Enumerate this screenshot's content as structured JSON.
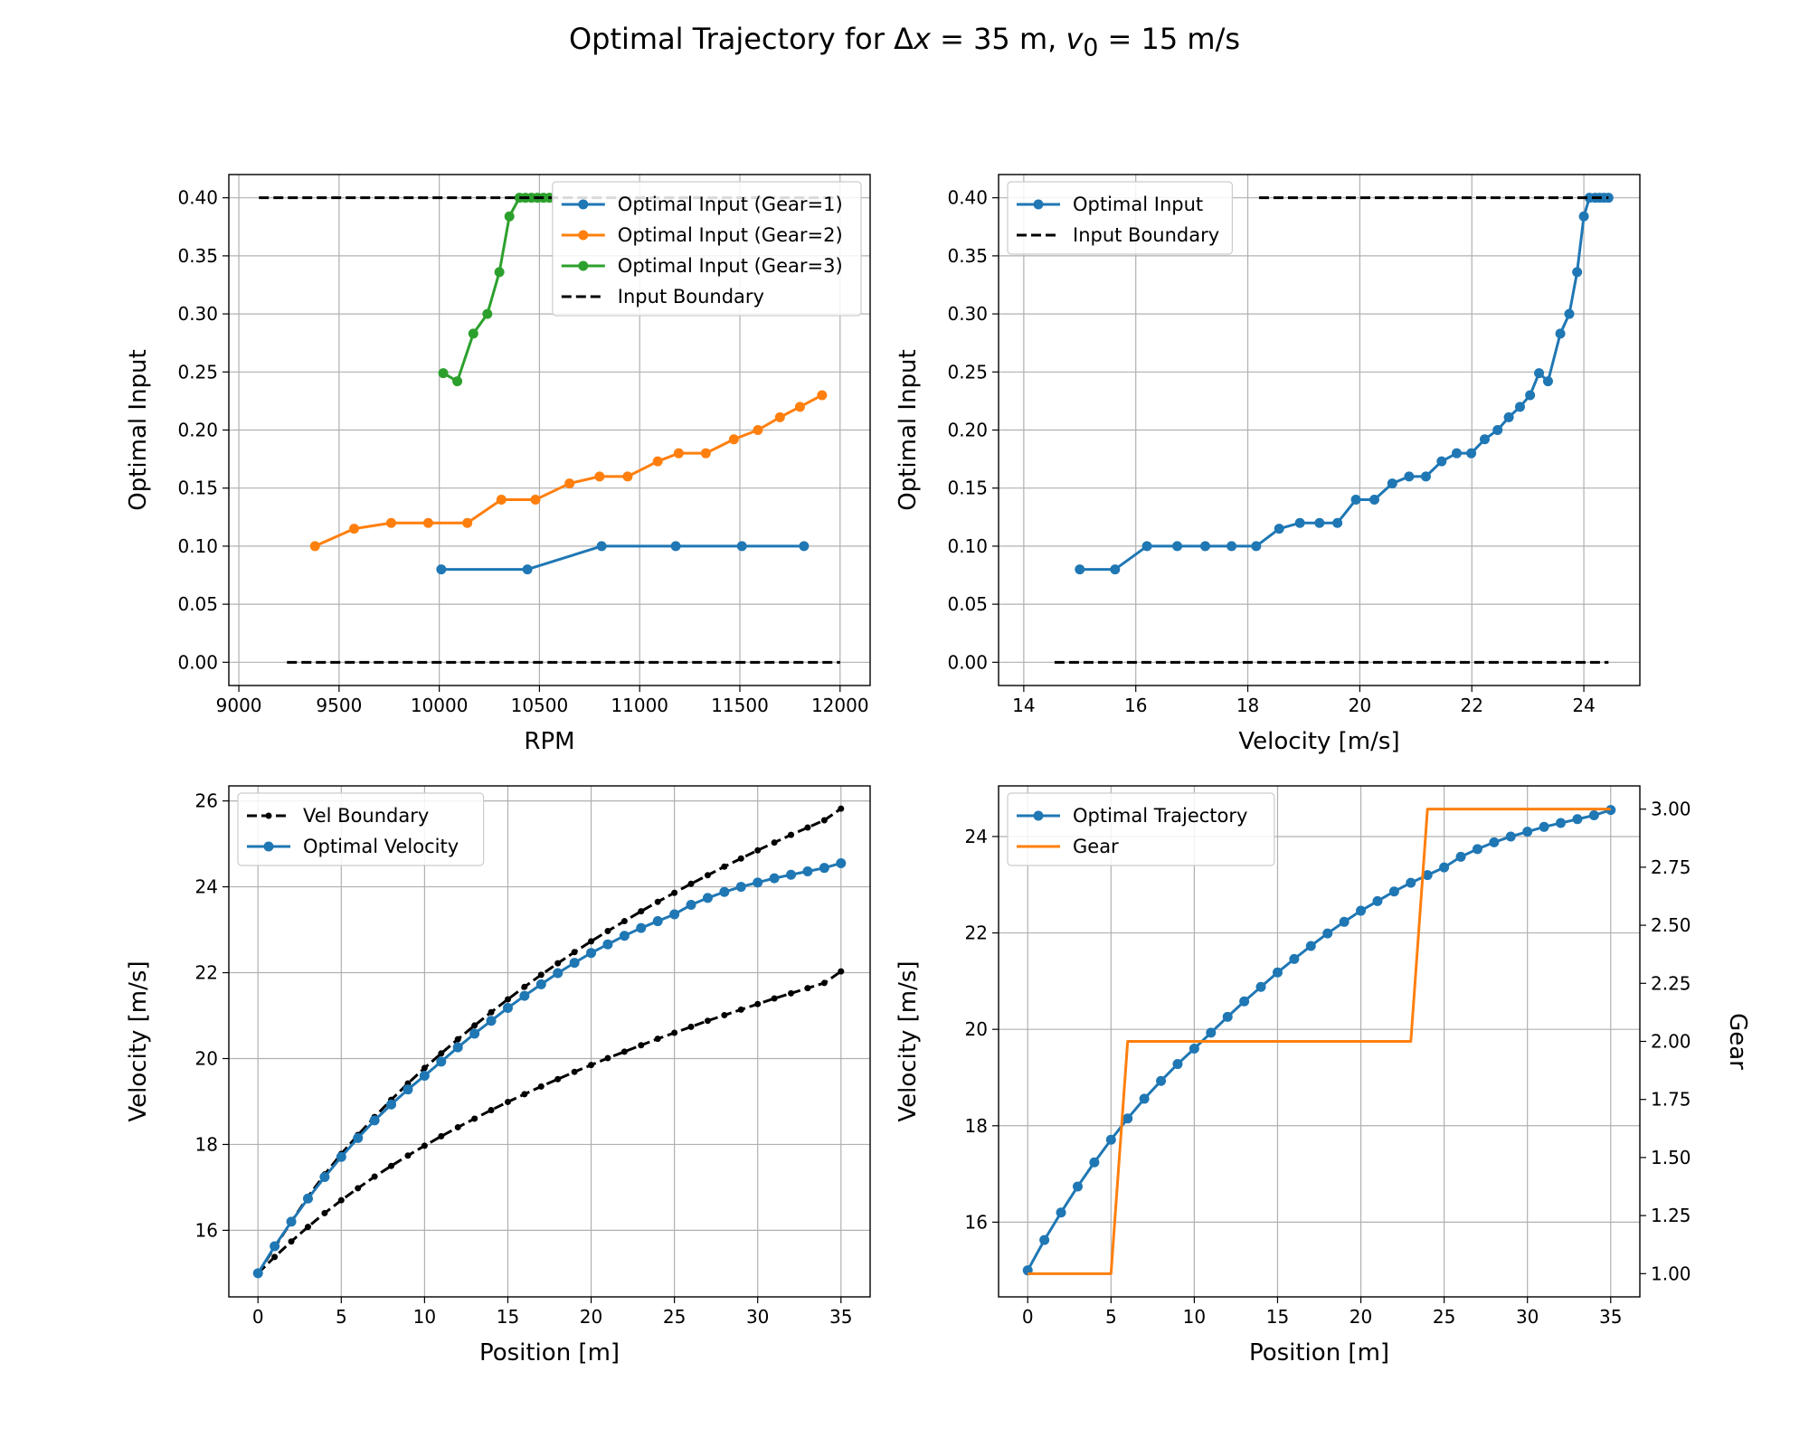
{
  "figure": {
    "title": {
      "prefix": "Optimal Trajectory for Δ",
      "x_var": "x",
      "mid": " = 35 m, ",
      "v_var": "v",
      "v_sub": "0",
      "suffix": " = 15 m/s"
    }
  },
  "colors": {
    "blue": "#1f77b4",
    "orange": "#ff7f0e",
    "green": "#2ca02c",
    "black": "#000000",
    "grid": "#b0b0b0"
  },
  "chart_data": [
    {
      "type": "line",
      "xlabel": "RPM",
      "ylabel": "Optimal Input",
      "xlim": [
        8950,
        12150
      ],
      "ylim": [
        -0.02,
        0.42
      ],
      "xticks": [
        9000,
        9500,
        10000,
        10500,
        11000,
        11500,
        12000
      ],
      "yticks": [
        0.0,
        0.05,
        0.1,
        0.15,
        0.2,
        0.25,
        0.3,
        0.35,
        0.4
      ],
      "ytick_labels": [
        "0.00",
        "0.05",
        "0.10",
        "0.15",
        "0.20",
        "0.25",
        "0.30",
        "0.35",
        "0.40"
      ],
      "grid": true,
      "legend": "top-right",
      "series": [
        {
          "name": "Optimal Input (Gear=1)",
          "color": "#1f77b4",
          "style": "line-marker",
          "x": [
            10010,
            10440,
            10810,
            11180,
            11510,
            11820
          ],
          "y": [
            0.08,
            0.08,
            0.1,
            0.1,
            0.1,
            0.1
          ]
        },
        {
          "name": "Optimal Input (Gear=2)",
          "color": "#ff7f0e",
          "style": "line-marker",
          "x": [
            9380,
            9575,
            9760,
            9945,
            10140,
            10310,
            10480,
            10650,
            10800,
            10940,
            11090,
            11195,
            11330,
            11470,
            11590,
            11700,
            11800,
            11910
          ],
          "y": [
            0.1,
            0.115,
            0.12,
            0.12,
            0.12,
            0.14,
            0.14,
            0.154,
            0.16,
            0.16,
            0.173,
            0.18,
            0.18,
            0.192,
            0.2,
            0.211,
            0.22,
            0.23
          ]
        },
        {
          "name": "Optimal Input (Gear=3)",
          "color": "#2ca02c",
          "style": "line-marker",
          "x": [
            10020,
            10090,
            10170,
            10240,
            10300,
            10350,
            10400,
            10430,
            10460,
            10490,
            10520,
            10550
          ],
          "y": [
            0.249,
            0.242,
            0.283,
            0.3,
            0.336,
            0.384,
            0.4,
            0.4,
            0.4,
            0.4,
            0.4,
            0.4
          ]
        },
        {
          "name": "Input Boundary",
          "color": "#000000",
          "style": "dashed",
          "segments": [
            {
              "x": [
                9100,
                12000
              ],
              "y": [
                0.4,
                0.4
              ]
            },
            {
              "x": [
                9240,
                12000
              ],
              "y": [
                0.0,
                0.0
              ]
            }
          ]
        }
      ]
    },
    {
      "type": "line",
      "xlabel": "Velocity [m/s]",
      "ylabel": "Optimal Input",
      "xlim": [
        13.55,
        25.0
      ],
      "ylim": [
        -0.02,
        0.42
      ],
      "xticks": [
        14,
        16,
        18,
        20,
        22,
        24
      ],
      "yticks": [
        0.0,
        0.05,
        0.1,
        0.15,
        0.2,
        0.25,
        0.3,
        0.35,
        0.4
      ],
      "ytick_labels": [
        "0.00",
        "0.05",
        "0.10",
        "0.15",
        "0.20",
        "0.25",
        "0.30",
        "0.35",
        "0.40"
      ],
      "grid": true,
      "legend": "top-left",
      "series": [
        {
          "name": "Optimal Input",
          "color": "#1f77b4",
          "style": "line-marker",
          "x": [
            15.0,
            15.63,
            16.2,
            16.74,
            17.24,
            17.71,
            18.15,
            18.56,
            18.93,
            19.28,
            19.6,
            19.93,
            20.26,
            20.58,
            20.88,
            21.18,
            21.46,
            21.73,
            21.99,
            22.23,
            22.46,
            22.66,
            22.86,
            23.04,
            23.2,
            23.36,
            23.58,
            23.74,
            23.88,
            24.0,
            24.1,
            24.2,
            24.28,
            24.36,
            24.44
          ],
          "y": [
            0.08,
            0.08,
            0.1,
            0.1,
            0.1,
            0.1,
            0.1,
            0.115,
            0.12,
            0.12,
            0.12,
            0.14,
            0.14,
            0.154,
            0.16,
            0.16,
            0.173,
            0.18,
            0.18,
            0.192,
            0.2,
            0.211,
            0.22,
            0.23,
            0.249,
            0.242,
            0.283,
            0.3,
            0.336,
            0.384,
            0.4,
            0.4,
            0.4,
            0.4,
            0.4
          ]
        },
        {
          "name": "Input Boundary",
          "color": "#000000",
          "style": "dashed",
          "segments": [
            {
              "x": [
                14.55,
                24.44
              ],
              "y": [
                0.0,
                0.0
              ]
            },
            {
              "x": [
                18.2,
                24.44
              ],
              "y": [
                0.4,
                0.4
              ]
            }
          ]
        }
      ]
    },
    {
      "type": "line",
      "xlabel": "Position [m]",
      "ylabel": "Velocity [m/s]",
      "xlim": [
        -1.75,
        36.75
      ],
      "ylim": [
        14.45,
        26.35
      ],
      "xticks": [
        0,
        5,
        10,
        15,
        20,
        25,
        30,
        35
      ],
      "yticks": [
        16,
        18,
        20,
        22,
        24,
        26
      ],
      "grid": true,
      "legend": "top-left",
      "series": [
        {
          "name": "Vel Boundary",
          "color": "#000000",
          "style": "dashed-dots",
          "x": [
            0,
            1,
            2,
            3,
            4,
            5,
            6,
            7,
            8,
            9,
            10,
            11,
            12,
            13,
            14,
            15,
            16,
            17,
            18,
            19,
            20,
            21,
            22,
            23,
            24,
            25,
            26,
            27,
            28,
            29,
            30,
            31,
            32,
            33,
            34,
            35
          ],
          "y": [
            15.0,
            15.6,
            16.2,
            16.78,
            17.3,
            17.78,
            18.22,
            18.64,
            19.04,
            19.42,
            19.78,
            20.12,
            20.45,
            20.77,
            21.08,
            21.38,
            21.67,
            21.95,
            22.22,
            22.48,
            22.73,
            22.97,
            23.2,
            23.43,
            23.65,
            23.86,
            24.07,
            24.27,
            24.47,
            24.66,
            24.85,
            25.03,
            25.21,
            25.38,
            25.55,
            25.82
          ]
        },
        {
          "name": "",
          "color": "#000000",
          "style": "dashed-dots",
          "x": [
            0,
            1,
            2,
            3,
            4,
            5,
            6,
            7,
            8,
            9,
            10,
            11,
            12,
            13,
            14,
            15,
            16,
            17,
            18,
            19,
            20,
            21,
            22,
            23,
            24,
            25,
            26,
            27,
            28,
            29,
            30,
            31,
            32,
            33,
            34,
            35
          ],
          "y": [
            15.0,
            15.38,
            15.74,
            16.08,
            16.4,
            16.7,
            16.98,
            17.25,
            17.5,
            17.74,
            17.97,
            18.19,
            18.4,
            18.6,
            18.8,
            18.99,
            19.17,
            19.35,
            19.52,
            19.69,
            19.85,
            20.01,
            20.16,
            20.31,
            20.46,
            20.6,
            20.74,
            20.88,
            21.01,
            21.14,
            21.27,
            21.4,
            21.52,
            21.64,
            21.76,
            22.03
          ]
        },
        {
          "name": "Optimal Velocity",
          "color": "#1f77b4",
          "style": "line-marker",
          "x": [
            0,
            1,
            2,
            3,
            4,
            5,
            6,
            7,
            8,
            9,
            10,
            11,
            12,
            13,
            14,
            15,
            16,
            17,
            18,
            19,
            20,
            21,
            22,
            23,
            24,
            25,
            26,
            27,
            28,
            29,
            30,
            31,
            32,
            33,
            34,
            35
          ],
          "y": [
            15.0,
            15.63,
            16.2,
            16.74,
            17.24,
            17.71,
            18.15,
            18.56,
            18.93,
            19.28,
            19.6,
            19.93,
            20.26,
            20.58,
            20.88,
            21.18,
            21.46,
            21.73,
            21.99,
            22.23,
            22.46,
            22.66,
            22.86,
            23.04,
            23.2,
            23.36,
            23.58,
            23.74,
            23.88,
            24.0,
            24.1,
            24.2,
            24.28,
            24.36,
            24.44,
            24.55
          ]
        }
      ]
    },
    {
      "type": "line",
      "xlabel": "Position [m]",
      "ylabel": "Velocity [m/s]",
      "y2label": "Gear",
      "xlim": [
        -1.75,
        36.75
      ],
      "ylim": [
        14.45,
        25.05
      ],
      "y2lim": [
        0.9,
        3.1
      ],
      "xticks": [
        0,
        5,
        10,
        15,
        20,
        25,
        30,
        35
      ],
      "yticks": [
        16,
        18,
        20,
        22,
        24
      ],
      "y2ticks": [
        1.0,
        1.25,
        1.5,
        1.75,
        2.0,
        2.25,
        2.5,
        2.75,
        3.0
      ],
      "y2tick_labels": [
        "1.00",
        "1.25",
        "1.50",
        "1.75",
        "2.00",
        "2.25",
        "2.50",
        "2.75",
        "3.00"
      ],
      "grid": true,
      "legend": "top-left",
      "series": [
        {
          "name": "Optimal Trajectory",
          "color": "#1f77b4",
          "style": "line-marker",
          "axis": "left",
          "x": [
            0,
            1,
            2,
            3,
            4,
            5,
            6,
            7,
            8,
            9,
            10,
            11,
            12,
            13,
            14,
            15,
            16,
            17,
            18,
            19,
            20,
            21,
            22,
            23,
            24,
            25,
            26,
            27,
            28,
            29,
            30,
            31,
            32,
            33,
            34,
            35
          ],
          "y": [
            15.0,
            15.63,
            16.2,
            16.74,
            17.24,
            17.71,
            18.15,
            18.56,
            18.93,
            19.28,
            19.6,
            19.93,
            20.26,
            20.58,
            20.88,
            21.18,
            21.46,
            21.73,
            21.99,
            22.23,
            22.46,
            22.66,
            22.86,
            23.04,
            23.2,
            23.36,
            23.58,
            23.74,
            23.88,
            24.0,
            24.1,
            24.2,
            24.28,
            24.36,
            24.44,
            24.55
          ]
        },
        {
          "name": "Gear",
          "color": "#ff7f0e",
          "style": "line",
          "axis": "right",
          "x": [
            0,
            5,
            6,
            23,
            24,
            35
          ],
          "y": [
            1,
            1,
            2,
            2,
            3,
            3
          ]
        }
      ]
    }
  ]
}
